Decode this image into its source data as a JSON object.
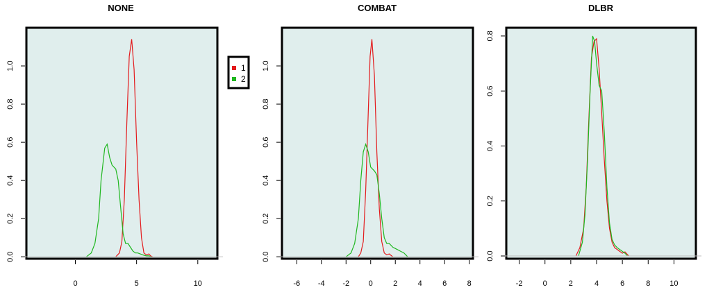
{
  "colors": {
    "background": "#e0eeed",
    "series_1": "#e31a1c",
    "series_2": "#1fb71f",
    "baseline": "#bdbdbd",
    "frame": "#000000"
  },
  "legend": {
    "items": [
      {
        "label": "1",
        "color": "#e31a1c"
      },
      {
        "label": "2",
        "color": "#1fb71f"
      }
    ]
  },
  "chart_data": [
    {
      "type": "line",
      "title": "NONE",
      "xlabel": "",
      "ylabel": "",
      "xlim": [
        -4,
        11.6
      ],
      "ylim": [
        -0.01,
        1.2
      ],
      "xticks": [
        0,
        5,
        10
      ],
      "xtick_labels": [
        "0",
        "5",
        "10"
      ],
      "yticks": [
        0,
        0.2,
        0.4,
        0.6,
        0.8,
        1.0
      ],
      "ytick_labels": [
        "0.0",
        "0.2",
        "0.4",
        "0.6",
        "0.8",
        "1.0"
      ],
      "grid": false,
      "series": [
        {
          "name": "1",
          "color": "#e31a1c",
          "x": [
            3.3,
            3.6,
            3.8,
            4.0,
            4.2,
            4.4,
            4.6,
            4.8,
            5.0,
            5.2,
            5.4,
            5.6,
            5.8,
            6.0,
            6.15,
            6.3
          ],
          "y": [
            0.0,
            0.02,
            0.08,
            0.3,
            0.7,
            1.05,
            1.14,
            0.98,
            0.6,
            0.3,
            0.1,
            0.02,
            0.01,
            0.015,
            0.005,
            0.0
          ]
        },
        {
          "name": "2",
          "color": "#1fb71f",
          "x": [
            0.9,
            1.3,
            1.6,
            1.9,
            2.1,
            2.4,
            2.6,
            2.8,
            3.0,
            3.3,
            3.5,
            3.7,
            3.9,
            4.1,
            4.3,
            4.5,
            4.7,
            4.9,
            5.1,
            5.3,
            5.5,
            5.8,
            6.0,
            6.2
          ],
          "y": [
            0.0,
            0.02,
            0.07,
            0.2,
            0.4,
            0.57,
            0.59,
            0.52,
            0.48,
            0.46,
            0.4,
            0.26,
            0.12,
            0.07,
            0.07,
            0.05,
            0.03,
            0.02,
            0.02,
            0.015,
            0.01,
            0.005,
            0.005,
            0.0
          ]
        }
      ]
    },
    {
      "type": "line",
      "title": "COMBAT",
      "xlabel": "",
      "ylabel": "",
      "xlim": [
        -7.2,
        8.3
      ],
      "ylim": [
        -0.01,
        1.2
      ],
      "xticks": [
        -6,
        -4,
        -2,
        0,
        2,
        4,
        6,
        8
      ],
      "xtick_labels": [
        "-6",
        "-4",
        "-2",
        "0",
        "2",
        "4",
        "6",
        "8"
      ],
      "yticks": [
        0,
        0.2,
        0.4,
        0.6,
        0.8,
        1.0
      ],
      "ytick_labels": [
        "0.0",
        "0.2",
        "0.4",
        "0.6",
        "0.8",
        "1.0"
      ],
      "grid": false,
      "series": [
        {
          "name": "1",
          "color": "#e31a1c",
          "x": [
            -1.0,
            -0.8,
            -0.6,
            -0.4,
            -0.2,
            -0.05,
            0.1,
            0.3,
            0.5,
            0.7,
            0.9,
            1.1,
            1.3,
            1.5,
            1.6,
            1.8
          ],
          "y": [
            0.0,
            0.02,
            0.08,
            0.35,
            0.75,
            1.05,
            1.14,
            0.95,
            0.55,
            0.25,
            0.08,
            0.02,
            0.01,
            0.015,
            0.01,
            0.0
          ]
        },
        {
          "name": "2",
          "color": "#1fb71f",
          "x": [
            -2.0,
            -1.6,
            -1.3,
            -1.0,
            -0.8,
            -0.6,
            -0.4,
            -0.2,
            0.0,
            0.3,
            0.5,
            0.7,
            0.9,
            1.1,
            1.3,
            1.5,
            1.8,
            2.1,
            2.4,
            2.7,
            3.0
          ],
          "y": [
            0.0,
            0.02,
            0.07,
            0.2,
            0.4,
            0.55,
            0.59,
            0.55,
            0.47,
            0.45,
            0.43,
            0.33,
            0.2,
            0.1,
            0.07,
            0.07,
            0.05,
            0.04,
            0.03,
            0.02,
            0.0
          ]
        }
      ]
    },
    {
      "type": "line",
      "title": "DLBR",
      "xlabel": "",
      "ylabel": "",
      "xlim": [
        -3,
        11.7
      ],
      "ylim": [
        -0.01,
        0.83
      ],
      "xticks": [
        -2,
        0,
        2,
        4,
        6,
        8,
        10
      ],
      "xtick_labels": [
        "-2",
        "0",
        "2",
        "4",
        "6",
        "8",
        "10"
      ],
      "yticks": [
        0,
        0.2,
        0.4,
        0.6,
        0.8
      ],
      "ytick_labels": [
        "0.0",
        "0.2",
        "0.4",
        "0.6",
        "0.8"
      ],
      "grid": false,
      "series": [
        {
          "name": "1",
          "color": "#e31a1c",
          "x": [
            2.4,
            2.7,
            3.0,
            3.2,
            3.4,
            3.6,
            3.8,
            4.0,
            4.2,
            4.4,
            4.6,
            4.8,
            5.0,
            5.2,
            5.4,
            5.7,
            6.0,
            6.2,
            6.4,
            6.5
          ],
          "y": [
            0.0,
            0.03,
            0.1,
            0.25,
            0.5,
            0.72,
            0.78,
            0.79,
            0.68,
            0.52,
            0.35,
            0.2,
            0.1,
            0.05,
            0.03,
            0.02,
            0.01,
            0.015,
            0.005,
            0.0
          ]
        },
        {
          "name": "2",
          "color": "#1fb71f",
          "x": [
            2.6,
            2.9,
            3.1,
            3.3,
            3.5,
            3.7,
            3.85,
            4.0,
            4.2,
            4.4,
            4.6,
            4.8,
            5.0,
            5.2,
            5.4,
            5.6,
            5.9,
            6.2,
            6.4
          ],
          "y": [
            0.0,
            0.05,
            0.15,
            0.35,
            0.6,
            0.8,
            0.78,
            0.7,
            0.62,
            0.6,
            0.45,
            0.25,
            0.12,
            0.06,
            0.04,
            0.03,
            0.02,
            0.01,
            0.0
          ]
        }
      ]
    }
  ]
}
